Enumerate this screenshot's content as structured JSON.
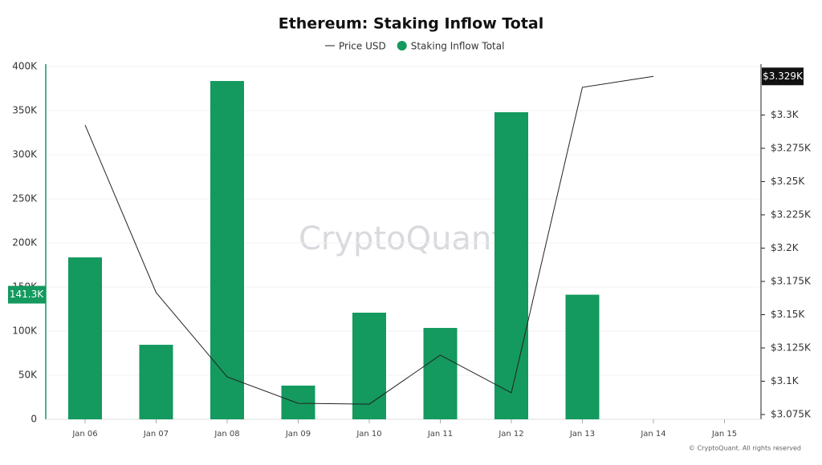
{
  "chart_data": {
    "type": "bar-line",
    "title": "Ethereum: Staking Inflow Total",
    "watermark": "CryptoQuant",
    "footer": "© CryptoQuant. All rights reserved",
    "categories": [
      "Jan 06",
      "Jan 07",
      "Jan 08",
      "Jan 09",
      "Jan 10",
      "Jan 11",
      "Jan 12",
      "Jan 13",
      "Jan 14",
      "Jan 15"
    ],
    "series": [
      {
        "name": "Price USD",
        "type": "line",
        "axis": "y2",
        "color": "#222222",
        "values": [
          3292.5,
          3166.6,
          3103.3,
          3083.4,
          3082.8,
          3119.6,
          3091.3,
          3320.8,
          3329,
          null
        ],
        "value_labels": [
          null,
          null,
          null,
          null,
          null,
          null,
          null,
          null,
          "$3.329K",
          null
        ]
      },
      {
        "name": "Staking Inflow Total",
        "type": "bar",
        "color": "#14995e",
        "values": [
          183600,
          84500,
          383600,
          38200,
          120900,
          103600,
          348200,
          141300,
          null,
          null
        ],
        "value_labels": [
          null,
          null,
          null,
          null,
          null,
          null,
          null,
          "141.3K",
          null,
          null
        ]
      }
    ],
    "ylim": [
      0,
      400000
    ],
    "yticks": [
      {
        "value": 0,
        "label": "0"
      },
      {
        "value": 50000,
        "label": "50K"
      },
      {
        "value": 100000,
        "label": "100K"
      },
      {
        "value": 150000,
        "label": "150K"
      },
      {
        "value": 200000,
        "label": "200K"
      },
      {
        "value": 250000,
        "label": "250K"
      },
      {
        "value": 300000,
        "label": "300K"
      },
      {
        "value": 350000,
        "label": "350K"
      },
      {
        "value": 400000,
        "label": "400K"
      }
    ],
    "y2lim": [
      3071.4,
      3336.4
    ],
    "y2ticks": [
      {
        "value": 3075,
        "label": "$3.075K"
      },
      {
        "value": 3100,
        "label": "$3.1K"
      },
      {
        "value": 3125,
        "label": "$3.125K"
      },
      {
        "value": 3150,
        "label": "$3.15K"
      },
      {
        "value": 3175,
        "label": "$3.175K"
      },
      {
        "value": 3200,
        "label": "$3.2K"
      },
      {
        "value": 3225,
        "label": "$3.225K"
      },
      {
        "value": 3250,
        "label": "$3.25K"
      },
      {
        "value": 3275,
        "label": "$3.275K"
      },
      {
        "value": 3300,
        "label": "$3.3K"
      }
    ],
    "grid": true
  }
}
